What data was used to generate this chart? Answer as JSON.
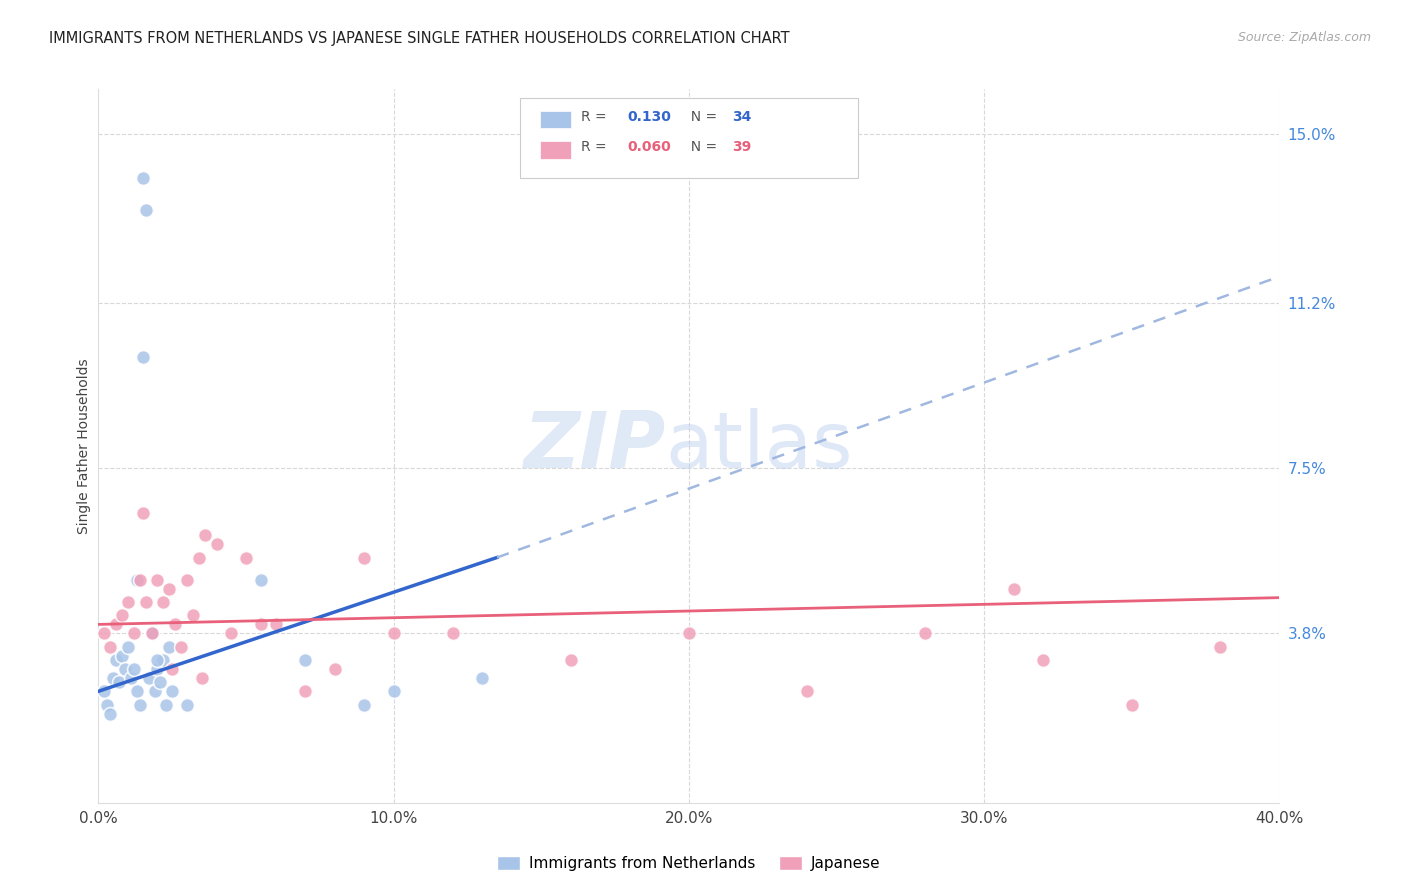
{
  "title": "IMMIGRANTS FROM NETHERLANDS VS JAPANESE SINGLE FATHER HOUSEHOLDS CORRELATION CHART",
  "source": "Source: ZipAtlas.com",
  "ylabel": "Single Father Households",
  "xlim": [
    0.0,
    0.4
  ],
  "ylim": [
    0.0,
    0.16
  ],
  "xtick_labels": [
    "0.0%",
    "10.0%",
    "20.0%",
    "30.0%",
    "40.0%"
  ],
  "xtick_vals": [
    0.0,
    0.1,
    0.2,
    0.3,
    0.4
  ],
  "ytick_right_labels": [
    "15.0%",
    "11.2%",
    "7.5%",
    "3.8%"
  ],
  "ytick_right_vals": [
    0.15,
    0.112,
    0.075,
    0.038
  ],
  "legend_R1": "0.130",
  "legend_N1": "34",
  "legend_R2": "0.060",
  "legend_N2": "39",
  "blue_color": "#a8c4e8",
  "pink_color": "#f0a0b8",
  "blue_line_color": "#3366cc",
  "pink_line_color": "#e8607a",
  "blue_dashed_color": "#a0b8e0",
  "netherlands_x": [
    0.002,
    0.003,
    0.004,
    0.005,
    0.006,
    0.007,
    0.008,
    0.009,
    0.01,
    0.011,
    0.012,
    0.013,
    0.014,
    0.015,
    0.016,
    0.017,
    0.018,
    0.019,
    0.02,
    0.021,
    0.022,
    0.023,
    0.024,
    0.025,
    0.013,
    0.015,
    0.018,
    0.02,
    0.03,
    0.055,
    0.07,
    0.09,
    0.1,
    0.13
  ],
  "netherlands_y": [
    0.025,
    0.022,
    0.02,
    0.028,
    0.032,
    0.027,
    0.033,
    0.03,
    0.035,
    0.028,
    0.03,
    0.025,
    0.022,
    0.14,
    0.133,
    0.028,
    0.038,
    0.025,
    0.03,
    0.027,
    0.032,
    0.022,
    0.035,
    0.025,
    0.05,
    0.1,
    0.038,
    0.032,
    0.022,
    0.05,
    0.032,
    0.022,
    0.025,
    0.028
  ],
  "japanese_x": [
    0.002,
    0.004,
    0.006,
    0.008,
    0.01,
    0.012,
    0.014,
    0.016,
    0.018,
    0.02,
    0.022,
    0.024,
    0.026,
    0.028,
    0.03,
    0.032,
    0.034,
    0.036,
    0.04,
    0.045,
    0.05,
    0.055,
    0.06,
    0.07,
    0.08,
    0.09,
    0.1,
    0.12,
    0.16,
    0.2,
    0.24,
    0.28,
    0.31,
    0.32,
    0.35,
    0.38,
    0.015,
    0.025,
    0.035
  ],
  "japanese_y": [
    0.038,
    0.035,
    0.04,
    0.042,
    0.045,
    0.038,
    0.05,
    0.045,
    0.038,
    0.05,
    0.045,
    0.048,
    0.04,
    0.035,
    0.05,
    0.042,
    0.055,
    0.06,
    0.058,
    0.038,
    0.055,
    0.04,
    0.04,
    0.025,
    0.03,
    0.055,
    0.038,
    0.038,
    0.032,
    0.038,
    0.025,
    0.038,
    0.048,
    0.032,
    0.022,
    0.035,
    0.065,
    0.03,
    0.028
  ],
  "nl_trendline_x0": 0.0,
  "nl_trendline_y0": 0.025,
  "nl_trendline_x1": 0.135,
  "nl_trendline_y1": 0.055,
  "nl_trendline_x1_dashed": 0.135,
  "nl_trendline_y1_dashed": 0.055,
  "nl_trendline_x2": 0.4,
  "nl_trendline_y2": 0.118,
  "jp_trendline_x0": 0.0,
  "jp_trendline_y0": 0.04,
  "jp_trendline_x1": 0.4,
  "jp_trendline_y1": 0.046
}
